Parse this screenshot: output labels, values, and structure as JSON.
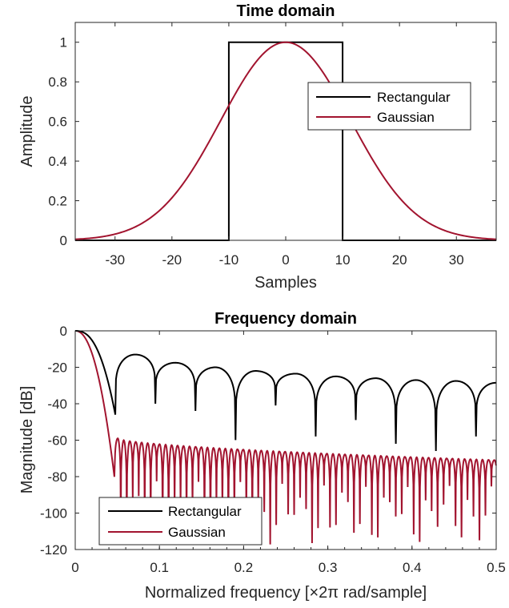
{
  "chart_data": [
    {
      "type": "line",
      "title": "Time domain",
      "xlabel": "Samples",
      "ylabel": "Amplitude",
      "xlim": [
        -37,
        37
      ],
      "ylim": [
        0,
        1.1
      ],
      "xticks": [
        "-30",
        "-20",
        "-10",
        "0",
        "10",
        "20",
        "30"
      ],
      "yticks": [
        "0",
        "0.2",
        "0.4",
        "0.6",
        "0.8",
        "1"
      ],
      "legend_position": "top-right",
      "series": [
        {
          "name": "Rectangular",
          "color": "#000000",
          "x": [
            -37,
            -10,
            -10,
            10,
            10,
            37
          ],
          "y": [
            0,
            0,
            1,
            1,
            0,
            0
          ]
        },
        {
          "name": "Gaussian",
          "color": "#a2142f",
          "x": [
            -37,
            -35,
            -30,
            -25,
            -20,
            -15,
            -10,
            -5,
            0,
            5,
            10,
            15,
            20,
            25,
            30,
            35,
            37
          ],
          "y": [
            0.013,
            0.02,
            0.05,
            0.11,
            0.23,
            0.42,
            0.68,
            0.91,
            1.0,
            0.91,
            0.68,
            0.42,
            0.23,
            0.11,
            0.05,
            0.02,
            0.013
          ]
        }
      ]
    },
    {
      "type": "line",
      "title": "Frequency domain",
      "xlabel": "Normalized frequency [×2π rad/sample]",
      "ylabel": "Magnitude [dB]",
      "xlim": [
        0,
        0.5
      ],
      "ylim": [
        -120,
        0
      ],
      "xticks": [
        "0",
        "0.1",
        "0.2",
        "0.3",
        "0.4",
        "0.5"
      ],
      "yticks": [
        "-120",
        "-100",
        "-80",
        "-60",
        "-40",
        "-20",
        "0"
      ],
      "legend_position": "bottom-left",
      "series": [
        {
          "name": "Rectangular",
          "color": "#000000",
          "lobe_spacing": 0.0476,
          "null_depths_db": [
            -46,
            -40,
            -44,
            -60,
            -41,
            -58,
            -49,
            -62,
            -66,
            -58
          ],
          "sidelobe_peaks_db": [
            -13,
            -17.5,
            -20,
            -22,
            -23.5,
            -25,
            -26,
            -27,
            -27.5,
            -28.5
          ]
        },
        {
          "name": "Gaussian",
          "color": "#a2142f",
          "lobe_spacing": 0.0071,
          "first_null": 0.047,
          "sidelobe_peak_db": [
            -59,
            -71
          ],
          "null_depth_db": [
            -82,
            -118
          ]
        }
      ]
    }
  ]
}
